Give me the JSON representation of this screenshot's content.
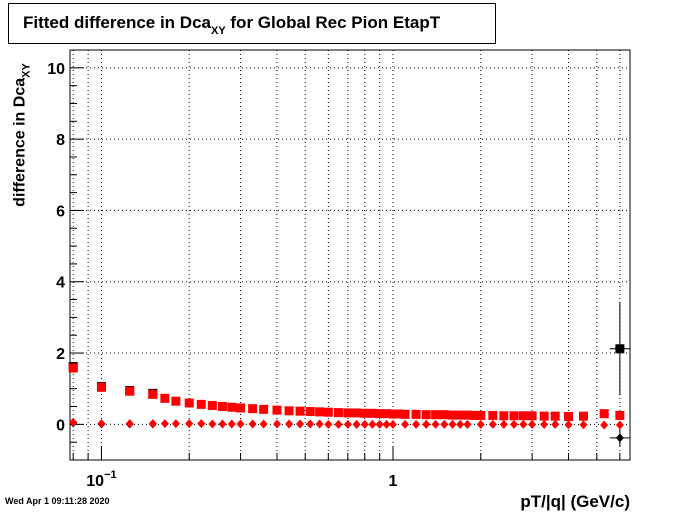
{
  "chart_data": {
    "type": "scatter",
    "title_main": "Fitted difference in Dca",
    "title_sub": "XY",
    "title_rest": " for Global Rec Pion EtapT",
    "ylabel_main": "difference in Dca",
    "ylabel_sub": "XY",
    "xlabel": "pT/|q| (GeV/c)",
    "x_scale": "log",
    "xlim": [
      0.078,
      6.5
    ],
    "ylim": [
      -1,
      10.5
    ],
    "grid": true,
    "y_ticks": [
      "0",
      "2",
      "4",
      "6",
      "8",
      "10"
    ],
    "x_ticks": [
      {
        "value": 0.1,
        "label": "10",
        "exp": "−1"
      },
      {
        "value": 1,
        "label": "1",
        "exp": ""
      }
    ],
    "colors": {
      "red": "#ff0000",
      "black": "#000000"
    },
    "series": [
      {
        "marker": "square",
        "color": "#000000",
        "points": [
          {
            "x": 0.08,
            "y": 1.62
          },
          {
            "x": 0.1,
            "y": 1.06
          },
          {
            "x": 0.125,
            "y": 0.95
          },
          {
            "x": 0.15,
            "y": 0.87
          },
          {
            "x": 6.0,
            "y": 2.12,
            "err": 1.3
          }
        ]
      },
      {
        "marker": "square",
        "color": "#ff0000",
        "points": [
          {
            "x": 0.08,
            "y": 1.58
          },
          {
            "x": 0.1,
            "y": 1.04
          },
          {
            "x": 0.125,
            "y": 0.93
          },
          {
            "x": 0.15,
            "y": 0.84
          },
          {
            "x": 0.165,
            "y": 0.73
          },
          {
            "x": 0.18,
            "y": 0.65
          },
          {
            "x": 0.2,
            "y": 0.6
          },
          {
            "x": 0.22,
            "y": 0.56
          },
          {
            "x": 0.24,
            "y": 0.53
          },
          {
            "x": 0.26,
            "y": 0.5
          },
          {
            "x": 0.28,
            "y": 0.48
          },
          {
            "x": 0.3,
            "y": 0.46
          },
          {
            "x": 0.33,
            "y": 0.44
          },
          {
            "x": 0.36,
            "y": 0.42
          },
          {
            "x": 0.4,
            "y": 0.4
          },
          {
            "x": 0.44,
            "y": 0.38
          },
          {
            "x": 0.48,
            "y": 0.37
          },
          {
            "x": 0.52,
            "y": 0.36
          },
          {
            "x": 0.56,
            "y": 0.35
          },
          {
            "x": 0.6,
            "y": 0.34
          },
          {
            "x": 0.65,
            "y": 0.33
          },
          {
            "x": 0.7,
            "y": 0.32
          },
          {
            "x": 0.75,
            "y": 0.32
          },
          {
            "x": 0.8,
            "y": 0.31
          },
          {
            "x": 0.85,
            "y": 0.31
          },
          {
            "x": 0.9,
            "y": 0.3
          },
          {
            "x": 0.95,
            "y": 0.3
          },
          {
            "x": 1.0,
            "y": 0.29
          },
          {
            "x": 1.05,
            "y": 0.29
          },
          {
            "x": 1.1,
            "y": 0.28
          },
          {
            "x": 1.2,
            "y": 0.28
          },
          {
            "x": 1.3,
            "y": 0.27
          },
          {
            "x": 1.4,
            "y": 0.27
          },
          {
            "x": 1.5,
            "y": 0.27
          },
          {
            "x": 1.6,
            "y": 0.26
          },
          {
            "x": 1.7,
            "y": 0.26
          },
          {
            "x": 1.8,
            "y": 0.26
          },
          {
            "x": 1.9,
            "y": 0.25
          },
          {
            "x": 2.0,
            "y": 0.25
          },
          {
            "x": 2.2,
            "y": 0.25
          },
          {
            "x": 2.4,
            "y": 0.24
          },
          {
            "x": 2.6,
            "y": 0.24
          },
          {
            "x": 2.8,
            "y": 0.24
          },
          {
            "x": 3.0,
            "y": 0.24
          },
          {
            "x": 3.3,
            "y": 0.23
          },
          {
            "x": 3.6,
            "y": 0.23
          },
          {
            "x": 4.0,
            "y": 0.22
          },
          {
            "x": 4.5,
            "y": 0.23
          },
          {
            "x": 5.3,
            "y": 0.3
          },
          {
            "x": 6.0,
            "y": 0.25
          }
        ]
      },
      {
        "marker": "diamond",
        "color": "#000000",
        "points": [
          {
            "x": 0.08,
            "y": 0.04
          },
          {
            "x": 0.1,
            "y": 0.01
          },
          {
            "x": 0.125,
            "y": 0.01
          },
          {
            "x": 0.15,
            "y": 0.01
          },
          {
            "x": 6.0,
            "y": -0.38,
            "err": 0.25
          }
        ]
      },
      {
        "marker": "diamond",
        "color": "#ff0000",
        "points": [
          {
            "x": 0.08,
            "y": 0.06
          },
          {
            "x": 0.1,
            "y": 0.02
          },
          {
            "x": 0.125,
            "y": 0.02
          },
          {
            "x": 0.15,
            "y": 0.02
          },
          {
            "x": 0.165,
            "y": 0.02
          },
          {
            "x": 0.18,
            "y": 0.02
          },
          {
            "x": 0.2,
            "y": 0.02
          },
          {
            "x": 0.22,
            "y": 0.02
          },
          {
            "x": 0.24,
            "y": 0.01
          },
          {
            "x": 0.26,
            "y": 0.01
          },
          {
            "x": 0.28,
            "y": 0.01
          },
          {
            "x": 0.3,
            "y": 0.01
          },
          {
            "x": 0.33,
            "y": 0.01
          },
          {
            "x": 0.36,
            "y": 0.01
          },
          {
            "x": 0.4,
            "y": 0.01
          },
          {
            "x": 0.44,
            "y": 0.01
          },
          {
            "x": 0.48,
            "y": 0.01
          },
          {
            "x": 0.52,
            "y": 0.01
          },
          {
            "x": 0.56,
            "y": 0.01
          },
          {
            "x": 0.6,
            "y": 0.0
          },
          {
            "x": 0.65,
            "y": 0.0
          },
          {
            "x": 0.7,
            "y": 0.0
          },
          {
            "x": 0.75,
            "y": 0.0
          },
          {
            "x": 0.8,
            "y": 0.0
          },
          {
            "x": 0.85,
            "y": 0.0
          },
          {
            "x": 0.9,
            "y": 0.0
          },
          {
            "x": 0.95,
            "y": 0.0
          },
          {
            "x": 1.0,
            "y": 0.0
          },
          {
            "x": 1.1,
            "y": 0.0
          },
          {
            "x": 1.2,
            "y": 0.0
          },
          {
            "x": 1.3,
            "y": 0.0
          },
          {
            "x": 1.4,
            "y": 0.0
          },
          {
            "x": 1.5,
            "y": 0.0
          },
          {
            "x": 1.6,
            "y": 0.0
          },
          {
            "x": 1.7,
            "y": 0.0
          },
          {
            "x": 1.8,
            "y": 0.0
          },
          {
            "x": 2.0,
            "y": 0.0
          },
          {
            "x": 2.2,
            "y": 0.0
          },
          {
            "x": 2.4,
            "y": 0.0
          },
          {
            "x": 2.6,
            "y": 0.0
          },
          {
            "x": 2.8,
            "y": 0.0
          },
          {
            "x": 3.0,
            "y": 0.0
          },
          {
            "x": 3.3,
            "y": 0.0
          },
          {
            "x": 3.6,
            "y": 0.0
          },
          {
            "x": 4.0,
            "y": -0.01
          },
          {
            "x": 4.5,
            "y": -0.01
          },
          {
            "x": 5.3,
            "y": -0.02
          },
          {
            "x": 6.0,
            "y": -0.02
          }
        ]
      }
    ]
  },
  "footer": {
    "timestamp": "Wed Apr  1 09:11:28 2020"
  }
}
